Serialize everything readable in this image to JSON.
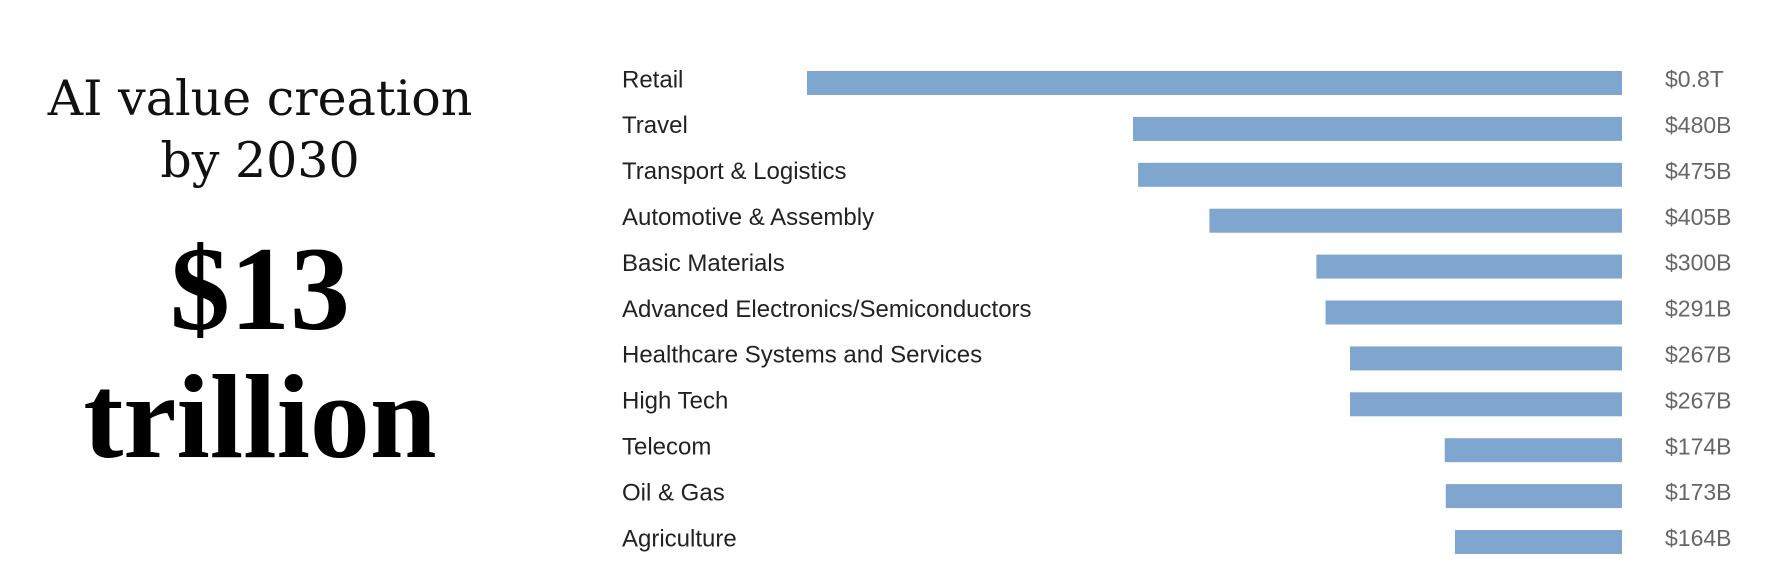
{
  "headline": {
    "subtitle_line1": "AI value creation",
    "subtitle_line2": "by 2030",
    "amount": "$13",
    "unit": "trillion"
  },
  "colors": {
    "bar": "#7ea6cf",
    "value_text": "#666666",
    "label_text": "#222222"
  },
  "chart_data": {
    "type": "bar",
    "orientation": "horizontal",
    "title": "AI value creation by 2030",
    "xlabel": "",
    "ylabel": "",
    "unit": "USD billions",
    "categories": [
      "Retail",
      "Travel",
      "Transport & Logistics",
      "Automotive & Assembly",
      "Basic Materials",
      "Advanced Electronics/Semiconductors",
      "Healthcare Systems and Services",
      "High Tech",
      "Telecom",
      "Oil & Gas",
      "Agriculture"
    ],
    "values": [
      800,
      480,
      475,
      405,
      300,
      291,
      267,
      267,
      174,
      173,
      164
    ],
    "value_labels": [
      "$0.8T",
      "$480B",
      "$475B",
      "$405B",
      "$300B",
      "$291B",
      "$267B",
      "$267B",
      "$174B",
      "$173B",
      "$164B"
    ],
    "xlim": [
      0,
      800
    ],
    "bar_alignment": "right",
    "grid": false,
    "legend": "none"
  }
}
